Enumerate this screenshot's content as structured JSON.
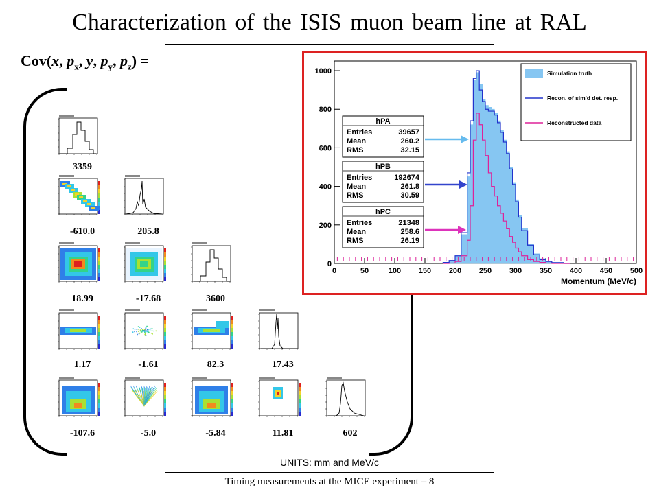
{
  "slide": {
    "title": "Characterization of the ISIS muon beam line at RAL",
    "cov_label": {
      "prefix": "Cov(",
      "x": "x",
      "p": "p",
      "y": "y",
      "sub_x": "x",
      "sub_y": "y",
      "sub_z": "z",
      "suffix": ")  ="
    },
    "units": "UNITS: mm and MeV/c",
    "footer": "Timing measurements at the MICE experiment – 8"
  },
  "matrix": {
    "rows": [
      [
        "3359"
      ],
      [
        "-610.0",
        "205.8"
      ],
      [
        "18.99",
        "-17.68",
        "3600"
      ],
      [
        "1.17",
        "-1.61",
        "82.3",
        "17.43"
      ],
      [
        "-107.6",
        "-5.0",
        "-5.84",
        "11.81",
        "602"
      ]
    ]
  },
  "chart_data": {
    "type": "area",
    "title": "",
    "xlabel": "Momentum (MeV/c)",
    "ylabel": "",
    "xlim": [
      0,
      500
    ],
    "ylim": [
      0,
      1050
    ],
    "x_ticks": [
      0,
      50,
      100,
      150,
      200,
      250,
      300,
      350,
      400,
      450,
      500
    ],
    "y_ticks": [
      0,
      200,
      400,
      600,
      800,
      1000
    ],
    "x": [
      180,
      190,
      200,
      210,
      220,
      225,
      230,
      235,
      240,
      245,
      250,
      255,
      260,
      265,
      270,
      275,
      280,
      285,
      290,
      295,
      300,
      305,
      310,
      320,
      330,
      340,
      350,
      360,
      380
    ],
    "series": [
      {
        "name": "Simulation truth",
        "color": "#86c6f2",
        "values": [
          5,
          15,
          40,
          150,
          450,
          720,
          950,
          990,
          930,
          850,
          820,
          810,
          800,
          780,
          740,
          690,
          640,
          580,
          500,
          420,
          330,
          250,
          180,
          100,
          50,
          25,
          12,
          5,
          0
        ]
      },
      {
        "name": "Recon. of sim'd det. resp.",
        "color": "#2233cc",
        "values": [
          5,
          15,
          40,
          160,
          470,
          740,
          960,
          1000,
          900,
          840,
          800,
          790,
          790,
          770,
          730,
          680,
          630,
          570,
          490,
          410,
          320,
          240,
          170,
          95,
          45,
          20,
          10,
          4,
          0
        ]
      },
      {
        "name": "Reconstructed data",
        "color": "#dd2299",
        "values": [
          0,
          2,
          10,
          40,
          120,
          300,
          640,
          780,
          720,
          640,
          560,
          470,
          400,
          350,
          300,
          260,
          220,
          180,
          140,
          110,
          80,
          60,
          40,
          20,
          10,
          5,
          2,
          0,
          0
        ]
      }
    ],
    "stat_boxes": [
      {
        "name": "hPA",
        "entries_label": "Entries",
        "entries": "39657",
        "mean_label": "Mean",
        "mean": "260.2",
        "rms_label": "RMS",
        "rms": "32.15",
        "arrow_color": "#66bbee"
      },
      {
        "name": "hPB",
        "entries_label": "Entries",
        "entries": "192674",
        "mean_label": "Mean",
        "mean": "261.8",
        "rms_label": "RMS",
        "rms": "30.59",
        "arrow_color": "#3344cc"
      },
      {
        "name": "hPC",
        "entries_label": "Entries",
        "entries": "21348",
        "mean_label": "Mean",
        "mean": "258.6",
        "rms_label": "RMS",
        "rms": "26.19",
        "arrow_color": "#dd33bb"
      }
    ],
    "legend": "top-right",
    "grid": false
  }
}
